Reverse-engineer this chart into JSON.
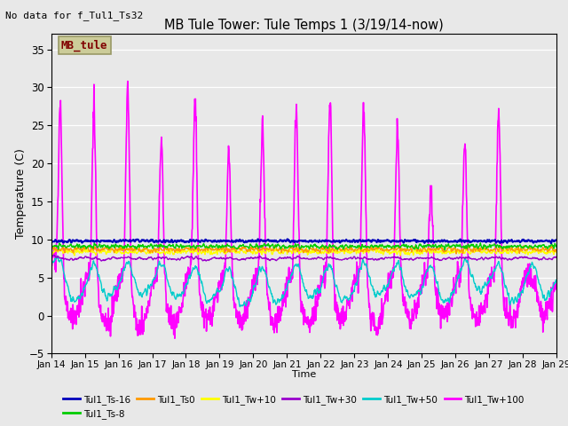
{
  "title": "MB Tule Tower: Tule Temps 1 (3/19/14-now)",
  "no_data_text": "No data for f_Tul1_Ts32",
  "xlabel": "Time",
  "ylabel": "Temperature (C)",
  "ylim": [
    -5,
    37
  ],
  "yticks": [
    -5,
    0,
    5,
    10,
    15,
    20,
    25,
    30,
    35
  ],
  "xlim": [
    0,
    15
  ],
  "xtick_labels": [
    "Jan 14",
    "Jan 15",
    "Jan 16",
    "Jan 17",
    "Jan 18",
    "Jan 19",
    "Jan 20",
    "Jan 21",
    "Jan 22",
    "Jan 23",
    "Jan 24",
    "Jan 25",
    "Jan 26",
    "Jan 27",
    "Jan 28",
    "Jan 29"
  ],
  "background_color": "#e8e8e8",
  "legend_box_color": "#cccc99",
  "legend_box_edge": "#999966",
  "legend_label_color": "#800000",
  "series": [
    {
      "label": "Tul1_Ts-16",
      "color": "#0000bb",
      "lw": 1.5,
      "base": 9.8,
      "amplitude": 0.15,
      "style": "flat"
    },
    {
      "label": "Tul1_Ts-8",
      "color": "#00cc00",
      "lw": 1.0,
      "base": 9.1,
      "amplitude": 0.25,
      "style": "flat"
    },
    {
      "label": "Tul1_Ts0",
      "color": "#ff9900",
      "lw": 1.0,
      "base": 8.7,
      "amplitude": 0.3,
      "style": "flat"
    },
    {
      "label": "Tul1_Tw+10",
      "color": "#ffff00",
      "lw": 1.0,
      "base": 8.4,
      "amplitude": 0.3,
      "style": "flat"
    },
    {
      "label": "Tul1_Tw+30",
      "color": "#9900cc",
      "lw": 1.0,
      "base": 8.1,
      "amplitude": 0.6,
      "style": "slow_wavy"
    },
    {
      "label": "Tul1_Tw+50",
      "color": "#00cccc",
      "lw": 1.0,
      "base": 7.5,
      "amplitude": 4.0,
      "style": "big_wavy"
    },
    {
      "label": "Tul1_Tw+100",
      "color": "#ff00ff",
      "lw": 1.2,
      "base": 8.0,
      "amplitude": 24.0,
      "style": "spiky"
    }
  ]
}
